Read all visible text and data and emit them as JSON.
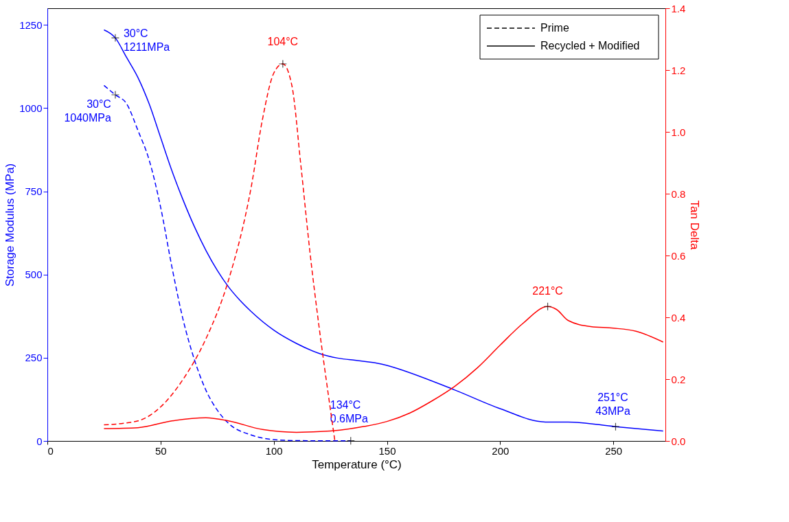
{
  "chart_data": {
    "type": "line",
    "xlabel": "Temperature (°C)",
    "ylabel": "Storage Modulus (MPa)",
    "y2label": "Tan Delta",
    "xlim": [
      0,
      273
    ],
    "xticks": [
      0,
      50,
      100,
      150,
      200,
      250
    ],
    "ylim": [
      0,
      1300
    ],
    "yticks": [
      0,
      250,
      500,
      750,
      1000,
      1250
    ],
    "y2lim": [
      0,
      1.4
    ],
    "y2ticks": [
      {
        "value": 0,
        "label": "0.0"
      },
      0.2,
      0.4,
      0.6,
      0.8,
      {
        "value": 1,
        "label": "1.0"
      },
      1.2,
      1.4
    ],
    "legend": "top right",
    "grid": false,
    "series": [
      {
        "name": "Prime",
        "color": "#0000ff",
        "line_style": "dashed",
        "x": [
          25,
          30,
          35,
          40,
          45,
          50,
          55,
          60,
          65,
          70,
          75,
          80,
          90,
          100,
          110,
          120,
          134
        ],
        "values": [
          1068,
          1040,
          1013,
          933,
          843,
          703,
          523,
          363,
          243,
          153,
          93,
          53,
          18,
          4,
          1,
          0.6,
          0.6
        ]
      },
      {
        "name": "Recycled + Modified",
        "color": "#0000ff",
        "line_style": "solid",
        "x": [
          25,
          30,
          35,
          40,
          45,
          50,
          55,
          60,
          65,
          70,
          75,
          80,
          85,
          90,
          100,
          110,
          120,
          150,
          180,
          200,
          220,
          230,
          251,
          272
        ],
        "values": [
          1235,
          1211,
          1152,
          1092,
          1012,
          912,
          812,
          723,
          643,
          573,
          513,
          463,
          423,
          389,
          333,
          293,
          263,
          227,
          153,
          97,
          57,
          57,
          43,
          30
        ]
      },
      {
        "color": "#ff0000",
        "line_style": "dashed",
        "axis": "y2",
        "x": [
          25,
          40,
          50,
          60,
          70,
          80,
          90,
          95,
          100,
          104,
          108,
          112,
          116,
          120,
          124,
          127
        ],
        "values": [
          0.052,
          0.065,
          0.11,
          0.2,
          0.33,
          0.52,
          0.82,
          1.04,
          1.19,
          1.22,
          1.15,
          0.89,
          0.61,
          0.37,
          0.155,
          0.0
        ]
      },
      {
        "color": "#ff0000",
        "line_style": "solid",
        "axis": "y2",
        "x": [
          25,
          40,
          55,
          70,
          80,
          95,
          110,
          125,
          140,
          150,
          160,
          170,
          180,
          190,
          200,
          210,
          221,
          225,
          230,
          240,
          250,
          260,
          272
        ],
        "values": [
          0.04,
          0.043,
          0.065,
          0.075,
          0.065,
          0.037,
          0.028,
          0.032,
          0.047,
          0.063,
          0.09,
          0.13,
          0.177,
          0.237,
          0.31,
          0.38,
          0.435,
          0.425,
          0.39,
          0.37,
          0.365,
          0.355,
          0.32
        ]
      }
    ],
    "annotations": [
      {
        "text": "30°C\n1211MPa",
        "x": 30,
        "y": 1211
      },
      {
        "text": "30°C\n1040MPa",
        "x": 30,
        "y": 1040
      },
      "104°C",
      "221°C",
      {
        "text": "134°C\n0.6MPa",
        "x": 134,
        "y": 0.6
      },
      {
        "text": "251°C\n43MPa",
        "x": 251,
        "y": 43
      }
    ]
  }
}
